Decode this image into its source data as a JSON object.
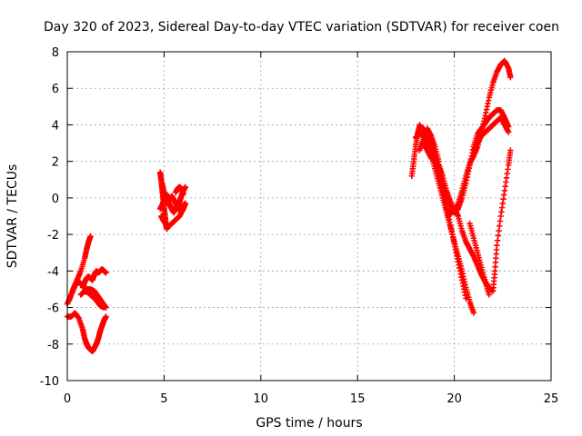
{
  "chart_data": {
    "type": "scatter",
    "title": "Day 320 of 2023, Sidereal Day-to-day VTEC variation (SDTVAR) for receiver coen",
    "xlabel": "GPS time / hours",
    "ylabel": "SDTVAR / TECUs",
    "xlim": [
      0,
      25
    ],
    "ylim": [
      -10,
      8
    ],
    "xticks": [
      0,
      5,
      10,
      15,
      20,
      25
    ],
    "yticks": [
      -10,
      -8,
      -6,
      -4,
      -2,
      0,
      2,
      4,
      6,
      8
    ],
    "grid": true,
    "marker": "+",
    "marker_color": "#ff0000",
    "series": [
      {
        "name": "",
        "tracks": [
          [
            [
              0.0,
              -5.8
            ],
            [
              0.2,
              -5.3
            ],
            [
              0.4,
              -4.8
            ],
            [
              0.6,
              -4.6
            ],
            [
              0.8,
              -4.8
            ],
            [
              1.0,
              -5.0
            ],
            [
              1.2,
              -5.0
            ],
            [
              1.4,
              -5.1
            ],
            [
              1.6,
              -5.4
            ],
            [
              1.8,
              -5.7
            ],
            [
              2.0,
              -6.0
            ]
          ],
          [
            [
              0.1,
              -5.6
            ],
            [
              0.3,
              -5.0
            ],
            [
              0.5,
              -4.5
            ],
            [
              0.7,
              -4.0
            ],
            [
              0.9,
              -3.3
            ],
            [
              1.0,
              -2.8
            ],
            [
              1.1,
              -2.4
            ],
            [
              1.2,
              -2.1
            ]
          ],
          [
            [
              0.0,
              -6.5
            ],
            [
              0.2,
              -6.5
            ],
            [
              0.4,
              -6.3
            ],
            [
              0.6,
              -6.6
            ],
            [
              0.8,
              -7.2
            ],
            [
              0.9,
              -7.7
            ],
            [
              1.0,
              -8.0
            ],
            [
              1.1,
              -8.2
            ],
            [
              1.2,
              -8.3
            ],
            [
              1.3,
              -8.4
            ],
            [
              1.4,
              -8.2
            ],
            [
              1.5,
              -8.0
            ],
            [
              1.6,
              -7.7
            ],
            [
              1.7,
              -7.3
            ],
            [
              1.8,
              -7.0
            ],
            [
              1.9,
              -6.7
            ],
            [
              2.0,
              -6.5
            ]
          ],
          [
            [
              0.8,
              -4.9
            ],
            [
              0.9,
              -4.6
            ],
            [
              1.0,
              -4.4
            ],
            [
              1.1,
              -4.3
            ],
            [
              1.2,
              -4.4
            ],
            [
              1.3,
              -4.5
            ],
            [
              1.4,
              -4.2
            ],
            [
              1.5,
              -4.0
            ],
            [
              1.6,
              -4.1
            ],
            [
              1.7,
              -4.0
            ],
            [
              1.8,
              -3.9
            ],
            [
              1.9,
              -4.0
            ],
            [
              2.0,
              -4.1
            ]
          ],
          [
            [
              0.7,
              -5.3
            ],
            [
              0.9,
              -5.1
            ],
            [
              1.1,
              -5.2
            ],
            [
              1.3,
              -5.4
            ],
            [
              1.5,
              -5.6
            ],
            [
              1.7,
              -5.9
            ],
            [
              1.9,
              -6.0
            ]
          ]
        ]
      },
      {
        "name": "",
        "tracks": [
          [
            [
              4.8,
              1.4
            ],
            [
              4.85,
              1.0
            ],
            [
              4.9,
              0.5
            ],
            [
              4.95,
              0.0
            ],
            [
              5.0,
              -0.5
            ],
            [
              5.05,
              -1.0
            ],
            [
              5.1,
              -1.5
            ],
            [
              5.15,
              -1.7
            ]
          ],
          [
            [
              4.9,
              0.8
            ],
            [
              5.0,
              0.3
            ],
            [
              5.1,
              0.0
            ],
            [
              5.2,
              -0.2
            ],
            [
              5.3,
              -0.4
            ],
            [
              5.4,
              -0.6
            ],
            [
              5.5,
              -0.8
            ],
            [
              5.6,
              -0.6
            ],
            [
              5.7,
              -0.4
            ],
            [
              5.8,
              -0.2
            ],
            [
              5.9,
              0.1
            ],
            [
              6.0,
              0.4
            ],
            [
              6.1,
              0.6
            ]
          ],
          [
            [
              4.8,
              -0.6
            ],
            [
              4.9,
              -0.4
            ],
            [
              5.0,
              -0.1
            ],
            [
              5.1,
              0.2
            ],
            [
              5.2,
              0.1
            ],
            [
              5.3,
              -0.1
            ],
            [
              5.4,
              0.1
            ],
            [
              5.5,
              -0.1
            ],
            [
              5.6,
              -0.3
            ],
            [
              5.7,
              -0.5
            ],
            [
              5.8,
              -0.7
            ],
            [
              5.9,
              -0.6
            ],
            [
              6.0,
              -0.4
            ],
            [
              6.1,
              -0.3
            ]
          ],
          [
            [
              4.85,
              -1.0
            ],
            [
              5.0,
              -1.3
            ],
            [
              5.2,
              -1.6
            ],
            [
              5.4,
              -1.4
            ],
            [
              5.6,
              -1.2
            ],
            [
              5.8,
              -1.0
            ],
            [
              6.0,
              -0.6
            ],
            [
              6.1,
              -0.3
            ]
          ],
          [
            [
              5.6,
              0.3
            ],
            [
              5.7,
              0.5
            ],
            [
              5.8,
              0.6
            ],
            [
              5.9,
              0.5
            ],
            [
              6.0,
              0.2
            ]
          ]
        ]
      },
      {
        "name": "",
        "tracks": [
          [
            [
              17.8,
              1.2
            ],
            [
              17.9,
              2.0
            ],
            [
              18.0,
              2.8
            ],
            [
              18.1,
              3.5
            ],
            [
              18.2,
              3.9
            ],
            [
              18.4,
              3.8
            ],
            [
              18.6,
              3.5
            ],
            [
              18.8,
              3.0
            ],
            [
              19.0,
              2.3
            ],
            [
              19.2,
              1.5
            ],
            [
              19.4,
              0.5
            ],
            [
              19.6,
              -0.5
            ],
            [
              19.8,
              -1.5
            ],
            [
              20.0,
              -2.5
            ],
            [
              20.2,
              -3.5
            ],
            [
              20.4,
              -4.5
            ],
            [
              20.6,
              -5.5
            ]
          ],
          [
            [
              18.0,
              3.3
            ],
            [
              18.2,
              3.5
            ],
            [
              18.4,
              3.4
            ],
            [
              18.6,
              3.0
            ],
            [
              18.8,
              2.4
            ],
            [
              19.0,
              1.6
            ],
            [
              19.2,
              0.8
            ],
            [
              19.4,
              0.0
            ],
            [
              19.6,
              -0.8
            ],
            [
              19.8,
              -1.6
            ],
            [
              20.0,
              -2.4
            ],
            [
              20.2,
              -3.2
            ],
            [
              20.4,
              -4.0
            ],
            [
              20.6,
              -4.9
            ],
            [
              20.8,
              -5.7
            ],
            [
              21.0,
              -6.3
            ]
          ],
          [
            [
              18.2,
              4.0
            ],
            [
              18.4,
              3.6
            ],
            [
              18.6,
              3.2
            ],
            [
              18.8,
              2.8
            ],
            [
              19.0,
              2.2
            ],
            [
              19.2,
              1.4
            ],
            [
              19.4,
              0.6
            ],
            [
              19.6,
              0.0
            ],
            [
              19.8,
              -0.4
            ],
            [
              20.0,
              -0.8
            ],
            [
              20.2,
              -0.6
            ],
            [
              20.4,
              0.0
            ],
            [
              20.6,
              0.8
            ],
            [
              20.8,
              1.8
            ],
            [
              21.0,
              2.8
            ],
            [
              21.2,
              3.5
            ],
            [
              21.4,
              3.8
            ],
            [
              21.6,
              4.1
            ],
            [
              21.8,
              4.4
            ],
            [
              22.0,
              4.6
            ],
            [
              22.2,
              4.8
            ],
            [
              22.4,
              4.8
            ],
            [
              22.6,
              4.4
            ],
            [
              22.8,
              3.9
            ]
          ],
          [
            [
              18.4,
              3.0
            ],
            [
              18.6,
              2.6
            ],
            [
              18.8,
              2.2
            ],
            [
              19.0,
              2.0
            ],
            [
              19.2,
              1.8
            ],
            [
              19.4,
              1.2
            ],
            [
              19.6,
              0.4
            ],
            [
              19.8,
              -0.2
            ],
            [
              20.0,
              -0.8
            ],
            [
              20.2,
              -0.3
            ],
            [
              20.4,
              0.4
            ],
            [
              20.6,
              1.2
            ],
            [
              20.8,
              1.9
            ],
            [
              21.0,
              2.3
            ],
            [
              21.2,
              2.8
            ],
            [
              21.4,
              3.6
            ],
            [
              21.6,
              4.5
            ],
            [
              21.8,
              5.5
            ],
            [
              22.0,
              6.3
            ],
            [
              22.2,
              6.9
            ],
            [
              22.4,
              7.3
            ],
            [
              22.6,
              7.5
            ],
            [
              22.8,
              7.1
            ],
            [
              22.9,
              6.6
            ]
          ],
          [
            [
              19.6,
              -0.6
            ],
            [
              19.8,
              -0.9
            ],
            [
              20.0,
              -0.6
            ],
            [
              20.2,
              -1.0
            ],
            [
              20.4,
              -1.8
            ],
            [
              20.6,
              -2.4
            ],
            [
              20.8,
              -2.8
            ],
            [
              21.0,
              -3.2
            ],
            [
              21.2,
              -3.7
            ],
            [
              21.4,
              -4.2
            ],
            [
              21.6,
              -4.6
            ],
            [
              21.8,
              -4.9
            ],
            [
              22.0,
              -5.1
            ],
            [
              22.1,
              -4.0
            ],
            [
              22.2,
              -2.6
            ],
            [
              22.4,
              -1.0
            ],
            [
              22.6,
              0.4
            ],
            [
              22.8,
              1.8
            ],
            [
              22.9,
              2.6
            ]
          ],
          [
            [
              21.0,
              2.6
            ],
            [
              21.2,
              3.0
            ],
            [
              21.4,
              3.4
            ],
            [
              21.6,
              3.6
            ],
            [
              21.8,
              3.8
            ],
            [
              22.0,
              4.0
            ],
            [
              22.2,
              4.2
            ],
            [
              22.4,
              4.4
            ],
            [
              22.6,
              4.0
            ],
            [
              22.8,
              3.6
            ]
          ],
          [
            [
              20.8,
              -1.4
            ],
            [
              21.0,
              -2.2
            ],
            [
              21.2,
              -3.0
            ],
            [
              21.4,
              -3.8
            ],
            [
              21.6,
              -4.6
            ],
            [
              21.8,
              -5.3
            ]
          ],
          [
            [
              18.2,
              2.6
            ],
            [
              18.4,
              3.2
            ],
            [
              18.6,
              3.8
            ],
            [
              18.8,
              3.4
            ],
            [
              19.0,
              2.8
            ],
            [
              19.2,
              2.0
            ]
          ]
        ]
      }
    ]
  }
}
